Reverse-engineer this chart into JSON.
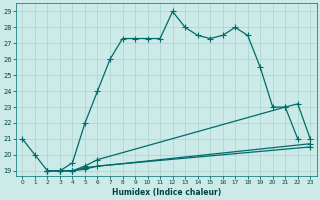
{
  "xlabel": "Humidex (Indice chaleur)",
  "background_color": "#cceae7",
  "grid_color": "#aad4cf",
  "line_color": "#006b6b",
  "xlim": [
    -0.5,
    23.5
  ],
  "ylim": [
    18.7,
    29.5
  ],
  "xticks": [
    0,
    1,
    2,
    3,
    4,
    5,
    6,
    7,
    8,
    9,
    10,
    11,
    12,
    13,
    14,
    15,
    16,
    17,
    18,
    19,
    20,
    21,
    22,
    23
  ],
  "yticks": [
    19,
    20,
    21,
    22,
    23,
    24,
    25,
    26,
    27,
    28,
    29
  ],
  "line1_x": [
    0,
    1,
    2,
    3,
    4,
    5,
    6,
    7,
    8,
    9,
    10,
    11,
    12,
    13,
    14,
    15,
    16,
    17,
    18,
    19,
    20,
    21,
    22
  ],
  "line1_y": [
    21.0,
    20.0,
    19.0,
    19.0,
    19.5,
    22.0,
    24.0,
    26.0,
    27.3,
    27.3,
    27.3,
    27.3,
    29.0,
    28.0,
    27.5,
    27.3,
    27.5,
    28.0,
    27.5,
    25.5,
    23.0,
    23.0,
    21.0
  ],
  "line1_markers": [
    0,
    1,
    2,
    3,
    4,
    5,
    6,
    7,
    8,
    9,
    10,
    11,
    12,
    13,
    14,
    15,
    16,
    17,
    18,
    19,
    20,
    21,
    22
  ],
  "line2_x": [
    2,
    3,
    4,
    5,
    6,
    21,
    22,
    23
  ],
  "line2_y": [
    19.0,
    19.0,
    19.0,
    19.3,
    19.7,
    23.0,
    23.2,
    21.0
  ],
  "line2_markers_x": [
    2,
    3,
    4,
    5,
    6,
    21,
    22,
    23
  ],
  "line2_markers_y": [
    19.0,
    19.0,
    19.0,
    19.3,
    19.7,
    23.0,
    23.2,
    21.0
  ],
  "line3_x": [
    2,
    3,
    4,
    5,
    23
  ],
  "line3_y": [
    19.0,
    19.0,
    19.0,
    19.2,
    20.7
  ],
  "line3_markers_x": [
    2,
    3,
    4,
    5,
    23
  ],
  "line3_markers_y": [
    19.0,
    19.0,
    19.0,
    19.2,
    20.7
  ],
  "line4_x": [
    2,
    3,
    4,
    5,
    6,
    23
  ],
  "line4_y": [
    19.0,
    19.0,
    19.0,
    19.1,
    19.3,
    20.5
  ],
  "line4_markers_x": [
    2,
    3,
    4,
    5,
    6,
    23
  ],
  "line4_markers_y": [
    19.0,
    19.0,
    19.0,
    19.1,
    19.3,
    20.5
  ]
}
